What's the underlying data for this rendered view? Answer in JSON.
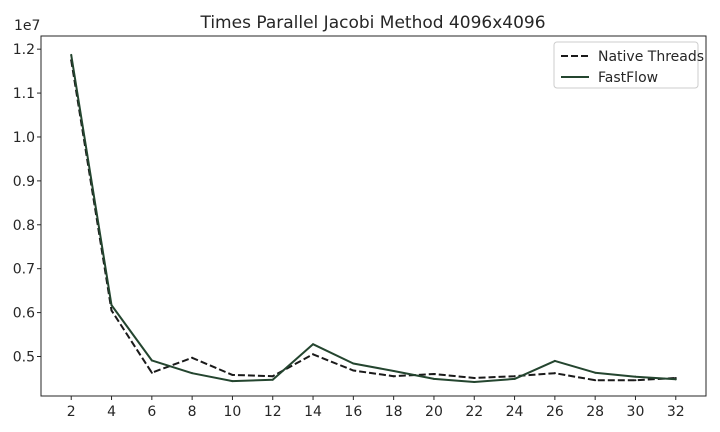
{
  "chart_data": {
    "type": "line",
    "title": "Times Parallel Jacobi Method 4096x4096",
    "xlabel": "",
    "ylabel": "",
    "y_offset_label": "1e7",
    "x": [
      2,
      4,
      6,
      8,
      10,
      12,
      14,
      16,
      18,
      20,
      22,
      24,
      26,
      28,
      30,
      32
    ],
    "xticks": [
      "2",
      "4",
      "6",
      "8",
      "10",
      "12",
      "14",
      "16",
      "18",
      "20",
      "22",
      "24",
      "26",
      "28",
      "30",
      "32"
    ],
    "yticks": [
      0.5,
      0.6,
      0.7,
      0.8,
      0.9,
      1.0,
      1.1,
      1.2
    ],
    "ytick_labels": [
      "0.5",
      "0.6",
      "0.7",
      "0.8",
      "0.9",
      "1.0",
      "1.1",
      "1.2"
    ],
    "xlim": [
      0.5,
      33.5
    ],
    "ylim": [
      0.41,
      1.23
    ],
    "grid": false,
    "legend_position": "top-right",
    "series": [
      {
        "name": "Native Threads",
        "style": "dashed",
        "color": "#1a1a1a",
        "values": [
          1.175,
          0.605,
          0.463,
          0.497,
          0.458,
          0.455,
          0.505,
          0.468,
          0.455,
          0.46,
          0.451,
          0.455,
          0.462,
          0.446,
          0.446,
          0.451
        ]
      },
      {
        "name": "FastFlow",
        "style": "solid",
        "color": "#24452f",
        "values": [
          1.187,
          0.617,
          0.491,
          0.462,
          0.444,
          0.447,
          0.528,
          0.484,
          0.467,
          0.449,
          0.442,
          0.449,
          0.49,
          0.463,
          0.454,
          0.448
        ]
      }
    ]
  }
}
